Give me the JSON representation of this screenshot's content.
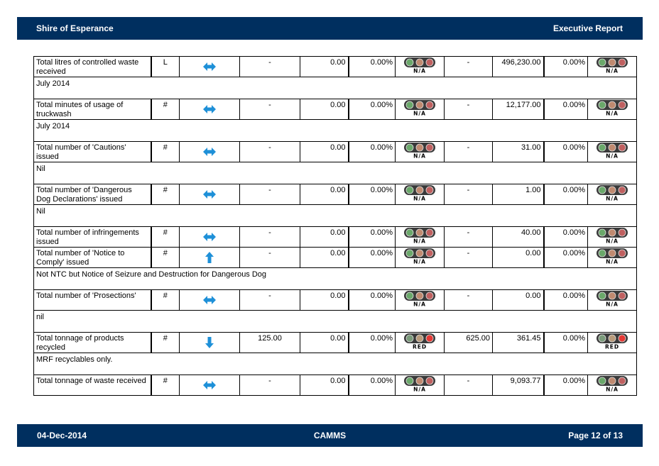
{
  "header": {
    "left": "Shire of Esperance",
    "right": "Executive Report"
  },
  "footer": {
    "date": "04-Dec-2014",
    "center": "CAMMS",
    "page": "Page 12 of 13"
  },
  "rows": [
    {
      "measure": "Total litres of controlled waste received",
      "unit": "L",
      "trend": "both",
      "target1": "-",
      "actual1": "0.00",
      "pct1": "0.00%",
      "status1": "N/A",
      "target2": "-",
      "actual2": "496,230.00",
      "pct2": "0.00%",
      "status2": "N/A",
      "comment": "July 2014"
    },
    {
      "measure": "Total minutes of usage of truckwash",
      "unit": "#",
      "trend": "both",
      "target1": "-",
      "actual1": "0.00",
      "pct1": "0.00%",
      "status1": "N/A",
      "target2": "-",
      "actual2": "12,177.00",
      "pct2": "0.00%",
      "status2": "N/A",
      "comment": "July 2014"
    },
    {
      "measure": "Total number of 'Cautions' issued",
      "unit": "#",
      "trend": "both",
      "target1": "-",
      "actual1": "0.00",
      "pct1": "0.00%",
      "status1": "N/A",
      "target2": "-",
      "actual2": "31.00",
      "pct2": "0.00%",
      "status2": "N/A",
      "comment": "Nil"
    },
    {
      "measure": "Total number of 'Dangerous Dog Declarations' issued",
      "unit": "#",
      "trend": "both",
      "target1": "-",
      "actual1": "0.00",
      "pct1": "0.00%",
      "status1": "N/A",
      "target2": "-",
      "actual2": "1.00",
      "pct2": "0.00%",
      "status2": "N/A",
      "comment": "Nil"
    },
    {
      "measure": "Total number of infringements issued",
      "unit": "#",
      "trend": "both",
      "target1": "-",
      "actual1": "0.00",
      "pct1": "0.00%",
      "status1": "N/A",
      "target2": "-",
      "actual2": "40.00",
      "pct2": "0.00%",
      "status2": "N/A",
      "comment": null
    },
    {
      "measure": "Total number of 'Notice to Comply' issued",
      "unit": "#",
      "trend": "up",
      "target1": "-",
      "actual1": "0.00",
      "pct1": "0.00%",
      "status1": "N/A",
      "target2": "-",
      "actual2": "0.00",
      "pct2": "0.00%",
      "status2": "N/A",
      "comment": "Not NTC but Notice of Seizure and Destruction for Dangerous Dog"
    },
    {
      "measure": "Total number of 'Prosections'",
      "unit": "#",
      "trend": "both",
      "target1": "-",
      "actual1": "0.00",
      "pct1": "0.00%",
      "status1": "N/A",
      "target2": "-",
      "actual2": "0.00",
      "pct2": "0.00%",
      "status2": "N/A",
      "comment": "nil"
    },
    {
      "measure": "Total tonnage of products recycled",
      "unit": "#",
      "trend": "down",
      "target1": "125.00",
      "actual1": "0.00",
      "pct1": "0.00%",
      "status1": "RED",
      "target2": "625.00",
      "actual2": "361.45",
      "pct2": "0.00%",
      "status2": "RED",
      "comment": "MRF recyclables only."
    },
    {
      "measure": "Total tonnage of waste received",
      "unit": "#",
      "trend": "both",
      "target1": "-",
      "actual1": "0.00",
      "pct1": "0.00%",
      "status1": "N/A",
      "target2": "-",
      "actual2": "9,093.77",
      "pct2": "0.00%",
      "status2": "N/A",
      "comment": null
    }
  ],
  "colors": {
    "banner": "#002f5f",
    "arrow": "#1e90d8",
    "light_green": "#4caf50",
    "light_amber": "#e0a030",
    "light_red": "#e53935"
  },
  "icons": {
    "both": "left-right-arrow-icon",
    "up": "up-arrow-icon",
    "down": "down-arrow-icon",
    "light": "traffic-light-icon"
  }
}
